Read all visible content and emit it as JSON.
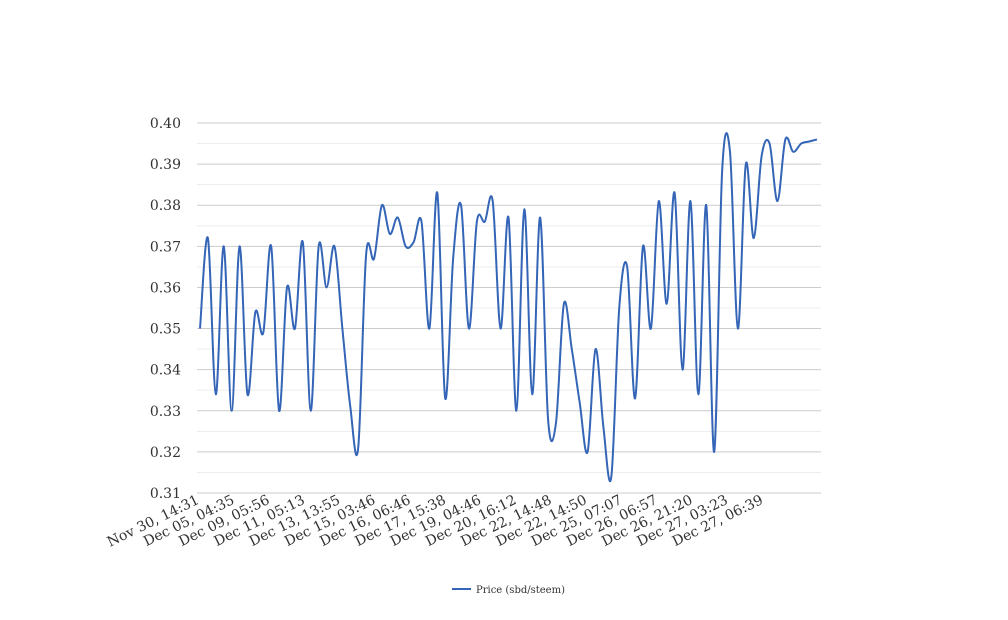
{
  "chart_data": {
    "type": "line",
    "title": "",
    "xlabel": "",
    "ylabel": "",
    "ylim": [
      0.31,
      0.4
    ],
    "yticks": [
      "0.31",
      "0.32",
      "0.33",
      "0.34",
      "0.35",
      "0.36",
      "0.37",
      "0.38",
      "0.39",
      "0.40"
    ],
    "grid": true,
    "legend_position": "bottom",
    "x_tick_labels": [
      "Nov 30, 14:31",
      "Dec 05, 04:35",
      "Dec 09, 05:56",
      "Dec 11, 05:13",
      "Dec 13, 13:55",
      "Dec 15, 03:46",
      "Dec 16, 06:46",
      "Dec 17, 15:38",
      "Dec 19, 04:46",
      "Dec 20, 16:12",
      "Dec 22, 14:48",
      "Dec 22, 14:50",
      "Dec 25, 07:07",
      "Dec 26, 06:57",
      "Dec 26, 21:20",
      "Dec 27, 03:23",
      "Dec 27, 06:39"
    ],
    "series": [
      {
        "name": "Price (sbd/steem)",
        "color": "#3465b7",
        "values": [
          0.35,
          0.372,
          0.334,
          0.37,
          0.33,
          0.37,
          0.334,
          0.354,
          0.349,
          0.37,
          0.33,
          0.36,
          0.35,
          0.371,
          0.33,
          0.37,
          0.36,
          0.37,
          0.35,
          0.331,
          0.321,
          0.368,
          0.367,
          0.38,
          0.373,
          0.377,
          0.37,
          0.371,
          0.376,
          0.35,
          0.383,
          0.333,
          0.367,
          0.38,
          0.35,
          0.376,
          0.376,
          0.381,
          0.35,
          0.377,
          0.33,
          0.379,
          0.334,
          0.377,
          0.328,
          0.327,
          0.356,
          0.345,
          0.332,
          0.32,
          0.345,
          0.326,
          0.314,
          0.355,
          0.365,
          0.333,
          0.37,
          0.35,
          0.381,
          0.356,
          0.383,
          0.34,
          0.381,
          0.334,
          0.38,
          0.32,
          0.388,
          0.393,
          0.35,
          0.39,
          0.372,
          0.392,
          0.395,
          0.381,
          0.396,
          0.393,
          0.395,
          0.3955,
          0.396
        ]
      }
    ]
  }
}
